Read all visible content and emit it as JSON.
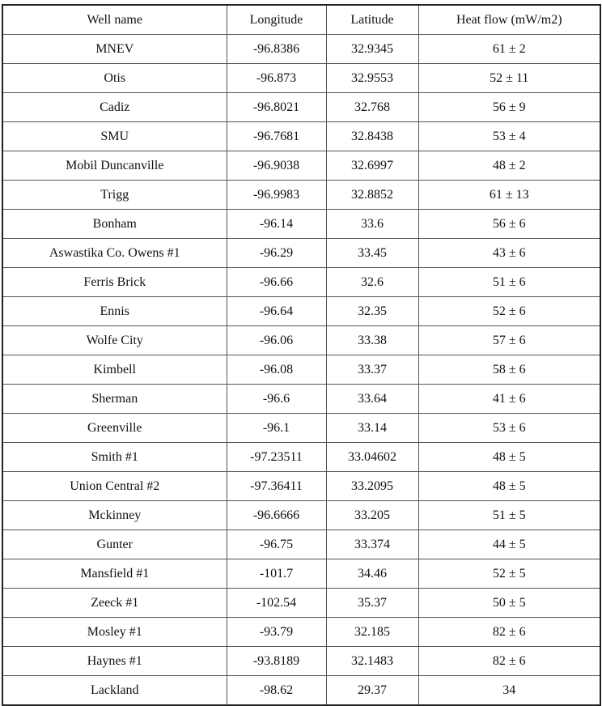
{
  "table": {
    "headers": [
      "Well name",
      "Longitude",
      "Latitude",
      "Heat flow (mW/m2)"
    ],
    "rows": [
      [
        "MNEV",
        "-96.8386",
        "32.9345",
        "61 ± 2"
      ],
      [
        "Otis",
        "-96.873",
        "32.9553",
        "52 ± 11"
      ],
      [
        "Cadiz",
        "-96.8021",
        "32.768",
        "56 ± 9"
      ],
      [
        "SMU",
        "-96.7681",
        "32.8438",
        "53 ± 4"
      ],
      [
        "Mobil Duncanville",
        "-96.9038",
        "32.6997",
        "48 ± 2"
      ],
      [
        "Trigg",
        "-96.9983",
        "32.8852",
        "61 ± 13"
      ],
      [
        "Bonham",
        "-96.14",
        "33.6",
        "56 ± 6"
      ],
      [
        "Aswastika Co. Owens #1",
        "-96.29",
        "33.45",
        "43 ± 6"
      ],
      [
        "Ferris Brick",
        "-96.66",
        "32.6",
        "51 ± 6"
      ],
      [
        "Ennis",
        "-96.64",
        "32.35",
        "52 ± 6"
      ],
      [
        "Wolfe City",
        "-96.06",
        "33.38",
        "57 ± 6"
      ],
      [
        "Kimbell",
        "-96.08",
        "33.37",
        "58 ± 6"
      ],
      [
        "Sherman",
        "-96.6",
        "33.64",
        "41 ± 6"
      ],
      [
        "Greenville",
        "-96.1",
        "33.14",
        "53 ± 6"
      ],
      [
        "Smith #1",
        "-97.23511",
        "33.04602",
        "48 ± 5"
      ],
      [
        "Union Central #2",
        "-97.36411",
        "33.2095",
        "48 ± 5"
      ],
      [
        "Mckinney",
        "-96.6666",
        "33.205",
        "51 ± 5"
      ],
      [
        "Gunter",
        "-96.75",
        "33.374",
        "44 ± 5"
      ],
      [
        "Mansfield #1",
        "-101.7",
        "34.46",
        "52 ± 5"
      ],
      [
        "Zeeck #1",
        "-102.54",
        "35.37",
        "50 ± 5"
      ],
      [
        "Mosley #1",
        "-93.79",
        "32.185",
        "82 ± 6"
      ],
      [
        "Haynes #1",
        "-93.8189",
        "32.1483",
        "82 ± 6"
      ],
      [
        "Lackland",
        "-98.62",
        "29.37",
        "34"
      ]
    ]
  }
}
